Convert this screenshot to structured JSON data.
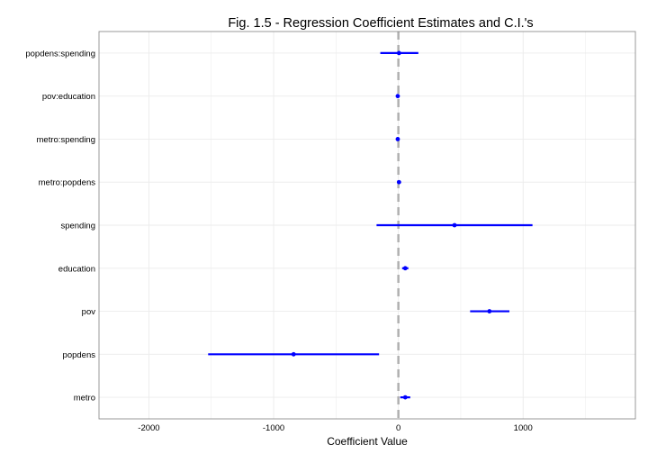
{
  "chart_data": {
    "type": "coefficient-plot",
    "title": "Fig. 1.5 - Regression Coefficient Estimates and C.I.'s",
    "xlabel": "Coefficient Value",
    "ylabel": "",
    "xlim": [
      -2400,
      1900
    ],
    "xticks": [
      -2000,
      -1000,
      0,
      1000
    ],
    "reference_line_x": 0,
    "grid": true,
    "categories": [
      "popdens:spending",
      "pov:education",
      "metro:spending",
      "metro:popdens",
      "spending",
      "education",
      "pov",
      "popdens",
      "metro"
    ],
    "estimates": [
      5,
      -5,
      -5,
      5,
      450,
      55,
      730,
      -840,
      55
    ],
    "ci_lower": [
      -145,
      -15,
      -15,
      -5,
      -175,
      30,
      575,
      -1525,
      15
    ],
    "ci_upper": [
      160,
      5,
      5,
      15,
      1075,
      80,
      890,
      -155,
      95
    ],
    "colors": {
      "interval": "#0000ff",
      "point": "#0000ff",
      "reference_line": "#b0b0b0",
      "grid": "#ebebeb",
      "border": "#7f7f7f"
    }
  }
}
